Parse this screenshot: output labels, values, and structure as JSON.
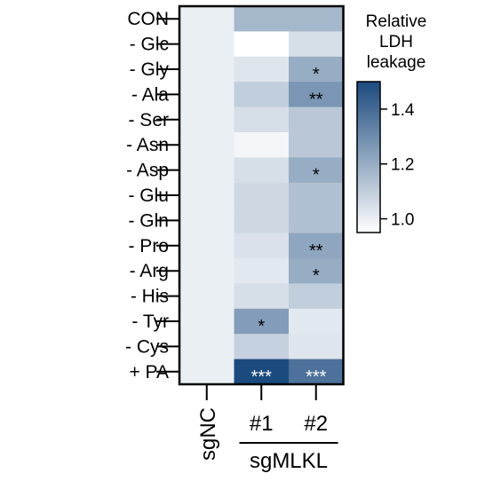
{
  "chart_data": {
    "type": "heatmap",
    "title": "",
    "rows": [
      "CON",
      "- Glc",
      "- Gly",
      "- Ala",
      "- Ser",
      "- Asn",
      "- Asp",
      "- Glu",
      "- Gln",
      "- Pro",
      "- Arg",
      "- His",
      "- Tyr",
      "- Cys",
      "+ PA"
    ],
    "columns": [
      "sgNC",
      "#1",
      "#2"
    ],
    "column_group": {
      "label": "sgMLKL",
      "columns": [
        "#1",
        "#2"
      ]
    },
    "values": [
      [
        1.0,
        1.17,
        1.17
      ],
      [
        1.0,
        0.95,
        1.05
      ],
      [
        1.0,
        1.03,
        1.2
      ],
      [
        1.0,
        1.1,
        1.27
      ],
      [
        1.0,
        1.05,
        1.12
      ],
      [
        1.0,
        0.98,
        1.12
      ],
      [
        1.0,
        1.05,
        1.2
      ],
      [
        1.0,
        1.07,
        1.14
      ],
      [
        1.0,
        1.07,
        1.14
      ],
      [
        1.0,
        1.04,
        1.22
      ],
      [
        1.0,
        1.02,
        1.2
      ],
      [
        1.0,
        1.05,
        1.1
      ],
      [
        1.0,
        1.25,
        1.02
      ],
      [
        1.0,
        1.09,
        1.03
      ],
      [
        1.0,
        1.5,
        1.38
      ]
    ],
    "annotations": [
      [
        "",
        "",
        ""
      ],
      [
        "",
        "",
        ""
      ],
      [
        "",
        "",
        "*"
      ],
      [
        "",
        "",
        "**"
      ],
      [
        "",
        "",
        ""
      ],
      [
        "",
        "",
        ""
      ],
      [
        "",
        "",
        "*"
      ],
      [
        "",
        "",
        ""
      ],
      [
        "",
        "",
        ""
      ],
      [
        "",
        "",
        "**"
      ],
      [
        "",
        "",
        "*"
      ],
      [
        "",
        "",
        ""
      ],
      [
        "",
        "*",
        ""
      ],
      [
        "",
        "",
        ""
      ],
      [
        "",
        "***",
        "***"
      ]
    ],
    "colorbar": {
      "title": [
        "Relative",
        "LDH",
        "leakage"
      ],
      "min": 0.95,
      "max": 1.5,
      "ticks": [
        1.0,
        1.2,
        1.4
      ],
      "tick_labels": [
        "1.0",
        "1.2",
        "1.4"
      ],
      "color_low": "#ffffff",
      "color_high": "#1b4a7e"
    }
  }
}
